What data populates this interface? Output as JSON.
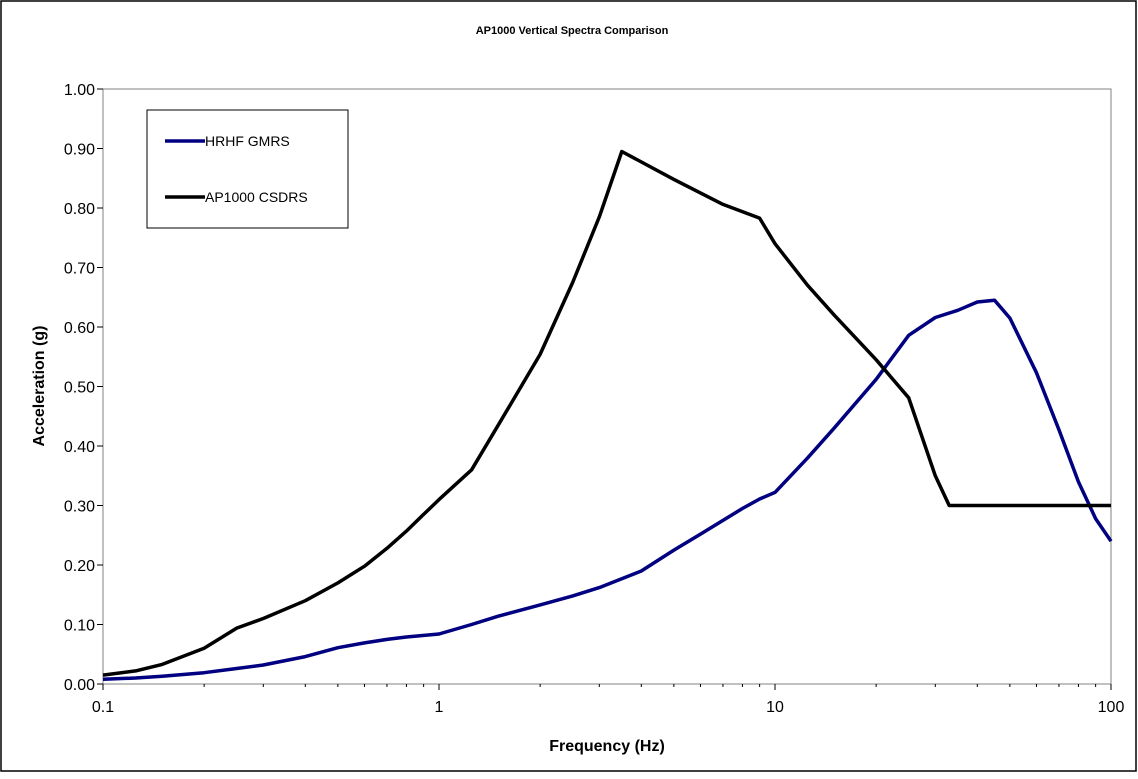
{
  "chart_data": {
    "type": "line",
    "title": "AP1000 Vertical Spectra Comparison",
    "xlabel": "Frequency (Hz)",
    "ylabel": "Acceleration (g)",
    "xscale": "log",
    "xlim": [
      0.1,
      100
    ],
    "ylim": [
      0,
      1
    ],
    "x_ticks": [
      "0.1",
      "1",
      "10",
      "100"
    ],
    "y_ticks": [
      "0.00",
      "0.10",
      "0.20",
      "0.30",
      "0.40",
      "0.50",
      "0.60",
      "0.70",
      "0.80",
      "0.90",
      "1.00"
    ],
    "grid": false,
    "legend": "top-left",
    "series": [
      {
        "name": "HRHF GMRS",
        "color": "#000080",
        "points": [
          [
            0.1,
            0.008
          ],
          [
            0.125,
            0.01
          ],
          [
            0.15,
            0.013
          ],
          [
            0.2,
            0.019
          ],
          [
            0.25,
            0.026
          ],
          [
            0.3,
            0.032
          ],
          [
            0.4,
            0.046
          ],
          [
            0.5,
            0.061
          ],
          [
            0.6,
            0.069
          ],
          [
            0.7,
            0.075
          ],
          [
            0.8,
            0.079
          ],
          [
            1.0,
            0.084
          ],
          [
            1.25,
            0.1
          ],
          [
            1.5,
            0.114
          ],
          [
            2.0,
            0.133
          ],
          [
            2.5,
            0.148
          ],
          [
            3.0,
            0.162
          ],
          [
            4.0,
            0.19
          ],
          [
            5.0,
            0.225
          ],
          [
            6.0,
            0.252
          ],
          [
            7.0,
            0.275
          ],
          [
            8.0,
            0.295
          ],
          [
            9.0,
            0.311
          ],
          [
            10.0,
            0.322
          ],
          [
            12.5,
            0.38
          ],
          [
            15.0,
            0.43
          ],
          [
            20.0,
            0.512
          ],
          [
            25.0,
            0.586
          ],
          [
            30.0,
            0.616
          ],
          [
            35.0,
            0.628
          ],
          [
            40.0,
            0.642
          ],
          [
            45.0,
            0.645
          ],
          [
            50.0,
            0.615
          ],
          [
            60.0,
            0.523
          ],
          [
            70.0,
            0.427
          ],
          [
            80.0,
            0.34
          ],
          [
            90.0,
            0.278
          ],
          [
            100.0,
            0.24
          ]
        ]
      },
      {
        "name": "AP1000 CSDRS",
        "color": "#000000",
        "points": [
          [
            0.1,
            0.015
          ],
          [
            0.125,
            0.022
          ],
          [
            0.15,
            0.033
          ],
          [
            0.2,
            0.06
          ],
          [
            0.25,
            0.094
          ],
          [
            0.3,
            0.11
          ],
          [
            0.4,
            0.14
          ],
          [
            0.5,
            0.17
          ],
          [
            0.6,
            0.198
          ],
          [
            0.7,
            0.228
          ],
          [
            0.8,
            0.257
          ],
          [
            0.9,
            0.285
          ],
          [
            1.0,
            0.31
          ],
          [
            1.25,
            0.36
          ],
          [
            1.5,
            0.435
          ],
          [
            2.0,
            0.554
          ],
          [
            2.5,
            0.675
          ],
          [
            3.0,
            0.785
          ],
          [
            3.5,
            0.895
          ],
          [
            5.0,
            0.848
          ],
          [
            7.0,
            0.806
          ],
          [
            9.0,
            0.783
          ],
          [
            10.0,
            0.74
          ],
          [
            12.5,
            0.67
          ],
          [
            15.0,
            0.62
          ],
          [
            20.0,
            0.545
          ],
          [
            25.0,
            0.481
          ],
          [
            30.0,
            0.35
          ],
          [
            33.0,
            0.3
          ],
          [
            100.0,
            0.3
          ]
        ]
      }
    ]
  }
}
